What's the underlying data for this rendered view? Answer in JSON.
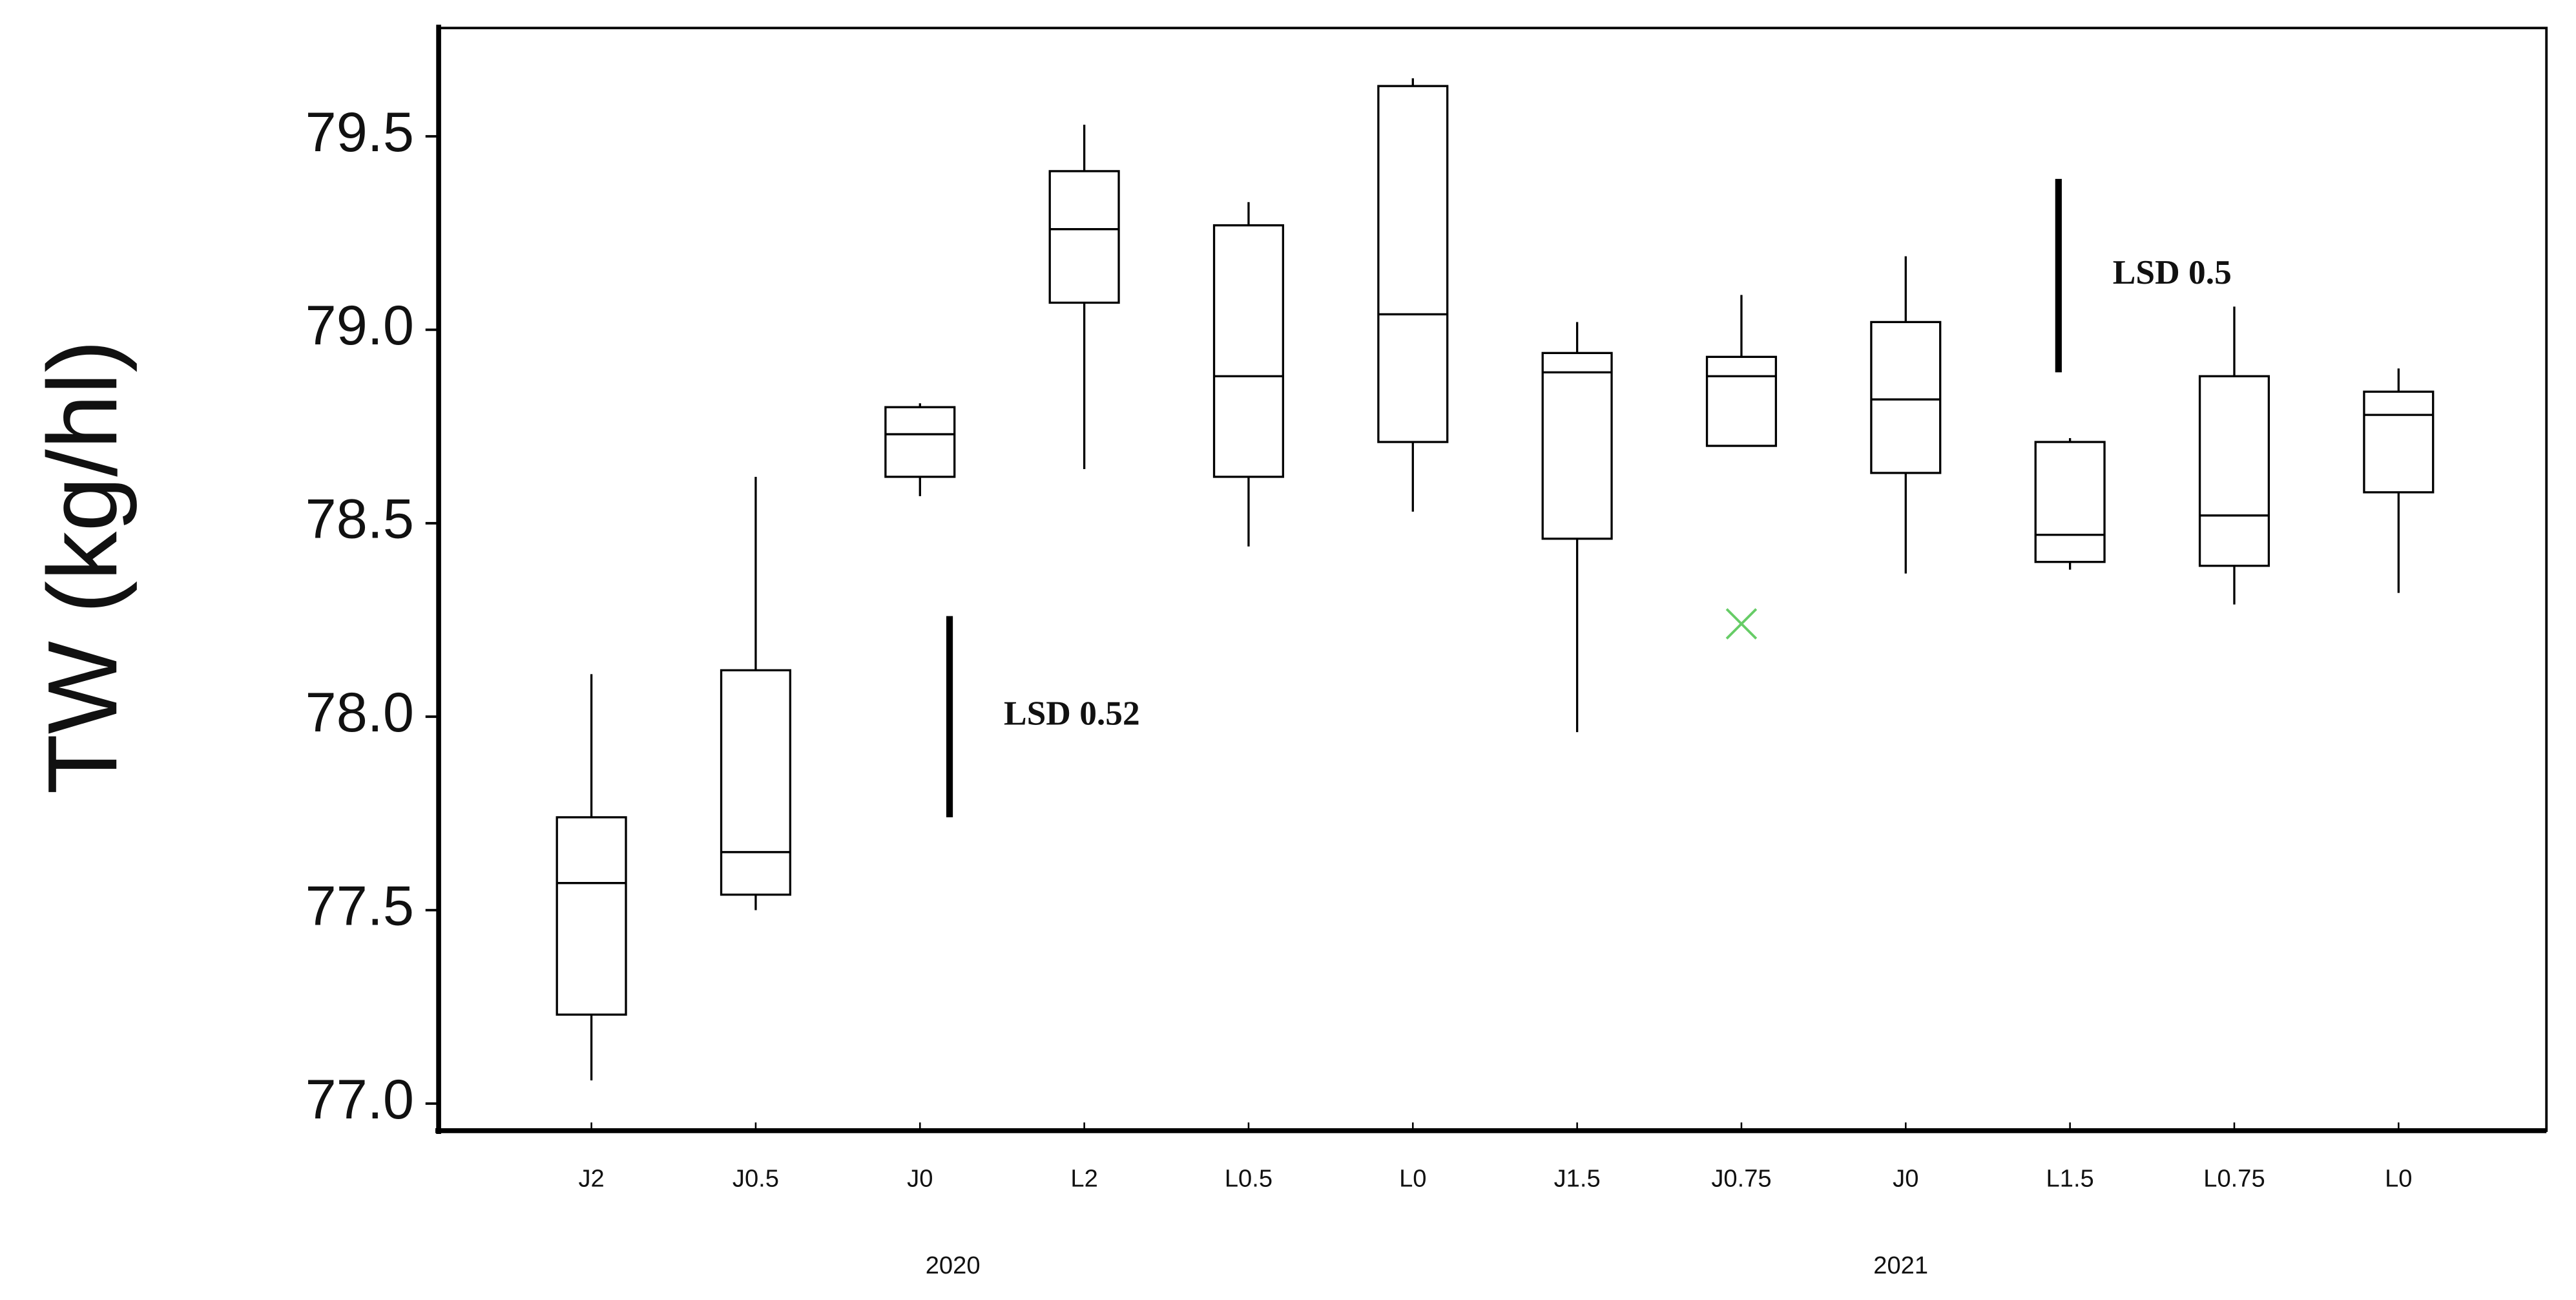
{
  "chart_data": {
    "type": "box",
    "y_label": "TW (kg/hl)",
    "categories": [
      "J2",
      "J0.5",
      "J0",
      "L2",
      "L0.5",
      "L0",
      "J1.5",
      "J0.75",
      "J0",
      "L1.5",
      "L0.75",
      "L0"
    ],
    "groups": [
      "2020",
      "2021"
    ],
    "min": [
      77.06,
      77.5,
      78.57,
      78.64,
      78.44,
      78.53,
      77.96,
      78.7,
      78.37,
      78.38,
      78.29,
      78.32
    ],
    "q1": [
      77.23,
      77.54,
      78.62,
      79.07,
      78.62,
      78.71,
      78.46,
      78.7,
      78.63,
      78.4,
      78.39,
      78.58
    ],
    "median": [
      77.57,
      77.65,
      78.73,
      79.26,
      78.88,
      79.04,
      78.89,
      78.88,
      78.82,
      78.47,
      78.52,
      78.78
    ],
    "q3": [
      77.74,
      78.12,
      78.8,
      79.41,
      79.27,
      79.63,
      78.94,
      78.93,
      79.02,
      78.71,
      78.88,
      78.84
    ],
    "max": [
      78.11,
      78.62,
      78.81,
      79.53,
      79.33,
      79.65,
      79.02,
      79.09,
      79.19,
      78.72,
      79.06,
      78.9
    ],
    "outliers": [
      null,
      null,
      null,
      null,
      null,
      null,
      null,
      78.24,
      null,
      null,
      null,
      null
    ],
    "color": "#000000",
    "outlier_color": "#66cc66",
    "annotations": [
      {
        "text": "LSD 0.52",
        "from": 77.74,
        "to": 78.26
      },
      {
        "text": "LSD 0.5",
        "from": 78.89,
        "to": 79.39
      }
    ],
    "ylim": [
      76.93,
      79.78
    ],
    "yticks": [
      {
        "value": 77.0,
        "label": "77.0"
      },
      {
        "value": 77.5,
        "label": "77.5"
      },
      {
        "value": 78.0,
        "label": "78.0"
      },
      {
        "value": 78.5,
        "label": "78.5"
      },
      {
        "value": 79.0,
        "label": "79.0"
      },
      {
        "value": 79.5,
        "label": "79.5"
      }
    ]
  }
}
